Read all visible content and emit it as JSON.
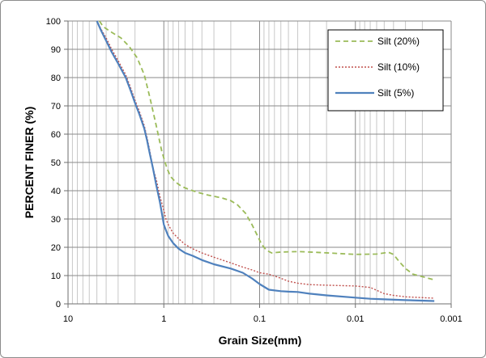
{
  "chart_data": {
    "type": "line",
    "title": "",
    "xlabel": "Grain Size(mm)",
    "ylabel": "PERCENT FINER (%)",
    "x_scale": "log",
    "x_reversed": true,
    "xlim": [
      10,
      0.001
    ],
    "ylim": [
      0,
      100
    ],
    "x_ticks": [
      10,
      1,
      0.1,
      0.01,
      0.001
    ],
    "x_tick_labels": [
      "10",
      "1",
      "0.1",
      "0.01",
      "0.001"
    ],
    "y_ticks": [
      0,
      10,
      20,
      30,
      40,
      50,
      60,
      70,
      80,
      90,
      100
    ],
    "y_tick_labels": [
      "0",
      "10",
      "20",
      "30",
      "40",
      "50",
      "60",
      "70",
      "80",
      "90",
      "100"
    ],
    "grid": true,
    "legend_position": "top-right",
    "series": [
      {
        "name": "Silt (20%)",
        "color": "#9bbb59",
        "style": "dashed",
        "points": [
          [
            4.7,
            100
          ],
          [
            4.3,
            98
          ],
          [
            3.5,
            96
          ],
          [
            2.8,
            94
          ],
          [
            2.3,
            91
          ],
          [
            1.9,
            87
          ],
          [
            1.6,
            81
          ],
          [
            1.4,
            73
          ],
          [
            1.2,
            63
          ],
          [
            1.05,
            54
          ],
          [
            0.93,
            48
          ],
          [
            0.85,
            45
          ],
          [
            0.75,
            43
          ],
          [
            0.65,
            41.5
          ],
          [
            0.55,
            40.5
          ],
          [
            0.45,
            39.5
          ],
          [
            0.35,
            38.5
          ],
          [
            0.25,
            37.5
          ],
          [
            0.2,
            36.5
          ],
          [
            0.17,
            35
          ],
          [
            0.14,
            32
          ],
          [
            0.12,
            28
          ],
          [
            0.105,
            24
          ],
          [
            0.095,
            21
          ],
          [
            0.085,
            19
          ],
          [
            0.075,
            18
          ],
          [
            0.06,
            18.3
          ],
          [
            0.04,
            18.5
          ],
          [
            0.025,
            18.2
          ],
          [
            0.015,
            17.8
          ],
          [
            0.01,
            17.5
          ],
          [
            0.006,
            17.6
          ],
          [
            0.005,
            18
          ],
          [
            0.0045,
            18.2
          ],
          [
            0.004,
            17.5
          ],
          [
            0.0035,
            15
          ],
          [
            0.003,
            12.5
          ],
          [
            0.0025,
            10.5
          ],
          [
            0.0015,
            8.5
          ]
        ]
      },
      {
        "name": "Silt (10%)",
        "color": "#c0504d",
        "style": "dotted",
        "points": [
          [
            5.0,
            100
          ],
          [
            4.5,
            97
          ],
          [
            4.0,
            94
          ],
          [
            3.5,
            90
          ],
          [
            3.0,
            86
          ],
          [
            2.5,
            81
          ],
          [
            2.2,
            76
          ],
          [
            2.0,
            72
          ],
          [
            1.8,
            68
          ],
          [
            1.6,
            63
          ],
          [
            1.5,
            59
          ],
          [
            1.4,
            54
          ],
          [
            1.3,
            48
          ],
          [
            1.2,
            44
          ],
          [
            1.1,
            38
          ],
          [
            1.0,
            33
          ],
          [
            0.95,
            30
          ],
          [
            0.9,
            28
          ],
          [
            0.8,
            25
          ],
          [
            0.7,
            23
          ],
          [
            0.6,
            21
          ],
          [
            0.5,
            19.5
          ],
          [
            0.4,
            18
          ],
          [
            0.3,
            16.5
          ],
          [
            0.2,
            14.5
          ],
          [
            0.15,
            13
          ],
          [
            0.12,
            12
          ],
          [
            0.1,
            11
          ],
          [
            0.08,
            10.5
          ],
          [
            0.065,
            9.5
          ],
          [
            0.05,
            8
          ],
          [
            0.04,
            7.3
          ],
          [
            0.03,
            6.8
          ],
          [
            0.02,
            6.6
          ],
          [
            0.01,
            6.3
          ],
          [
            0.007,
            5.8
          ],
          [
            0.006,
            4.8
          ],
          [
            0.005,
            3.6
          ],
          [
            0.004,
            3.0
          ],
          [
            0.003,
            2.5
          ],
          [
            0.0015,
            2.0
          ]
        ]
      },
      {
        "name": "Silt (5%)",
        "color": "#4f81bd",
        "style": "solid",
        "points": [
          [
            5.0,
            100
          ],
          [
            4.5,
            96.5
          ],
          [
            4.0,
            93
          ],
          [
            3.5,
            89
          ],
          [
            3.0,
            85
          ],
          [
            2.5,
            80
          ],
          [
            2.2,
            75
          ],
          [
            2.0,
            71
          ],
          [
            1.8,
            67
          ],
          [
            1.6,
            62
          ],
          [
            1.5,
            58
          ],
          [
            1.4,
            53
          ],
          [
            1.3,
            48
          ],
          [
            1.2,
            42
          ],
          [
            1.1,
            36
          ],
          [
            1.0,
            28
          ],
          [
            0.95,
            26
          ],
          [
            0.9,
            24
          ],
          [
            0.8,
            21.5
          ],
          [
            0.7,
            19.5
          ],
          [
            0.6,
            18
          ],
          [
            0.5,
            17
          ],
          [
            0.4,
            15.5
          ],
          [
            0.3,
            14
          ],
          [
            0.2,
            12.5
          ],
          [
            0.15,
            11
          ],
          [
            0.12,
            9
          ],
          [
            0.1,
            7
          ],
          [
            0.08,
            5
          ],
          [
            0.06,
            4.5
          ],
          [
            0.05,
            4.3
          ],
          [
            0.04,
            4.2
          ],
          [
            0.03,
            3.6
          ],
          [
            0.02,
            3.0
          ],
          [
            0.01,
            2.2
          ],
          [
            0.007,
            1.8
          ],
          [
            0.005,
            1.6
          ],
          [
            0.003,
            1.3
          ],
          [
            0.0015,
            1.0
          ]
        ]
      }
    ]
  }
}
